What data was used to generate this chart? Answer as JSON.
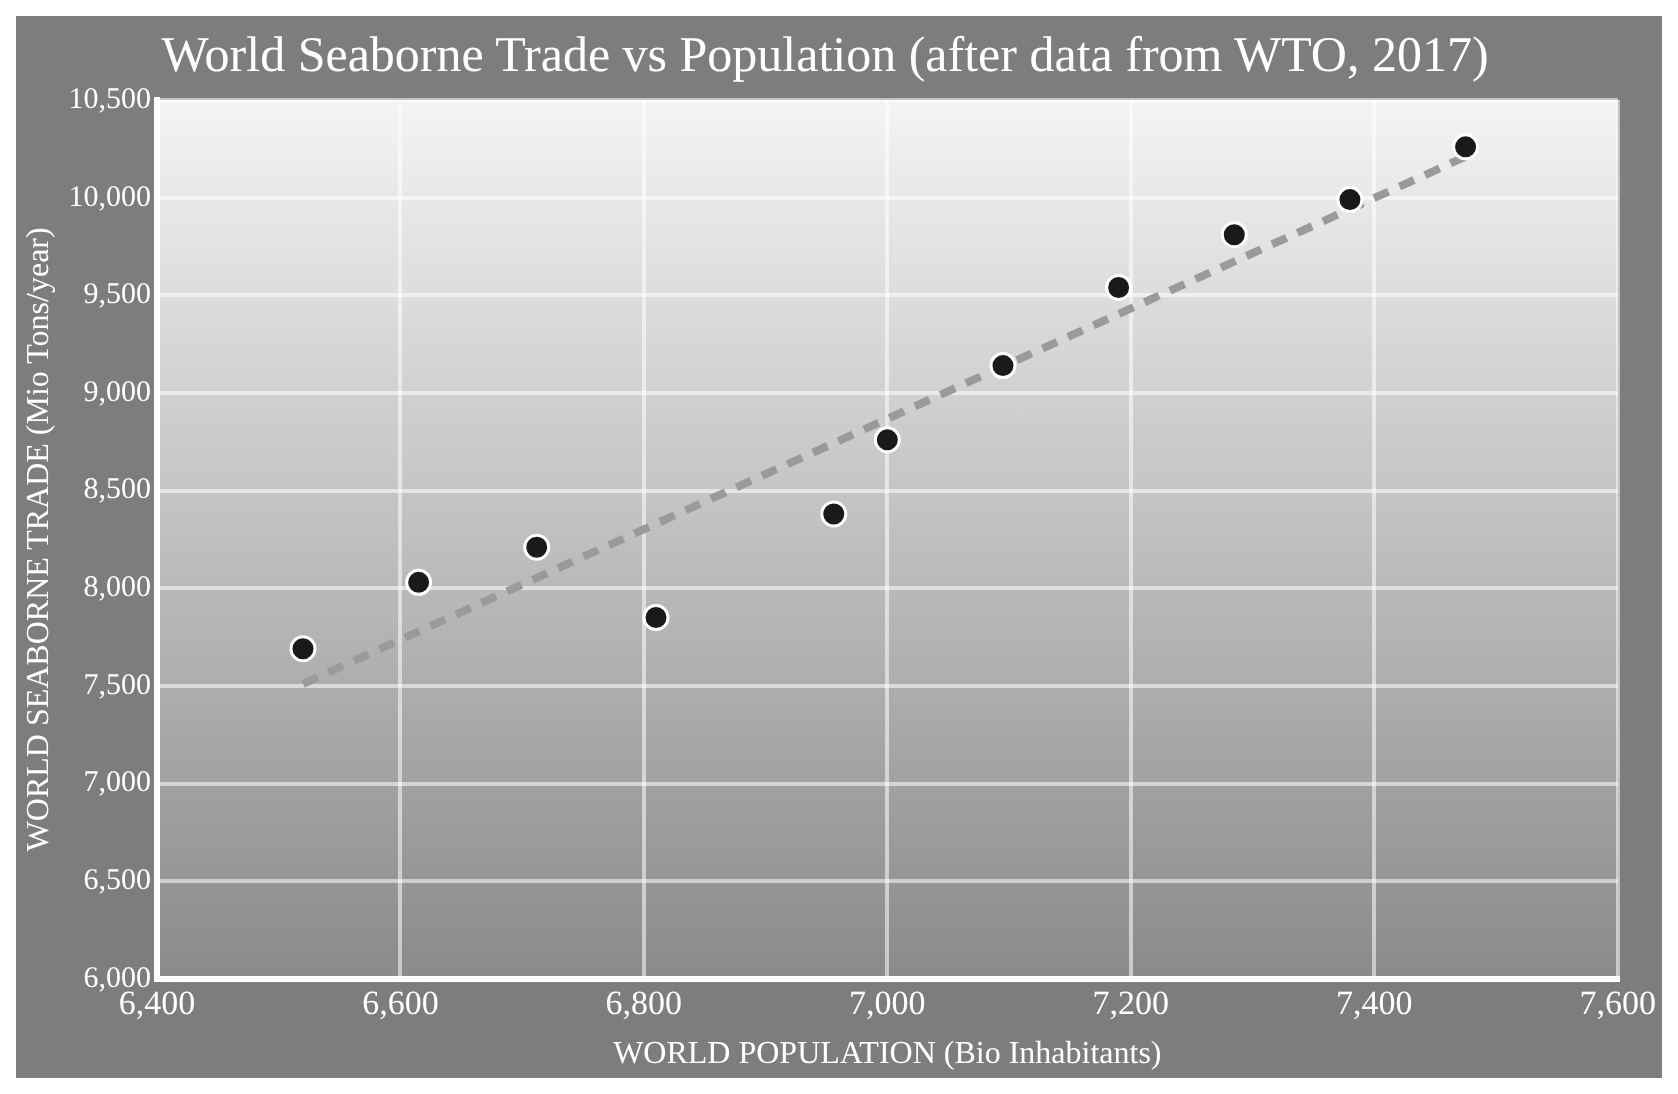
{
  "chart_data": {
    "type": "scatter",
    "title": "World Seaborne Trade vs Population (after data from WTO, 2017)",
    "xlabel": "WORLD POPULATION (Bio Inhabitants)",
    "ylabel": "WORLD SEABORNE TRADE (Mio Tons/year)",
    "x": [
      6520,
      6615,
      6712,
      6810,
      6956,
      7000,
      7095,
      7190,
      7285,
      7380,
      7475
    ],
    "series": [
      {
        "type": "scatter",
        "color": "#1a1a1a",
        "values": [
          7690,
          8030,
          8210,
          7850,
          8380,
          8760,
          9140,
          9540,
          9810,
          9990,
          10260
        ]
      },
      {
        "type": "line",
        "x": [
          6520,
          7475
        ],
        "values": [
          7510,
          10210
        ],
        "color": "#9a9a9a",
        "line_style": "dashed",
        "marker": "none"
      }
    ],
    "xlim": [
      6400,
      7600
    ],
    "xticks": [
      {
        "value": 6400,
        "label": "6,400"
      },
      {
        "value": 6600,
        "label": "6,600"
      },
      {
        "value": 6800,
        "label": "6,800"
      },
      {
        "value": 7000,
        "label": "7,000"
      },
      {
        "value": 7200,
        "label": "7,200"
      },
      {
        "value": 7400,
        "label": "7,400"
      },
      {
        "value": 7600,
        "label": "7,600"
      }
    ],
    "ylim": [
      6000,
      10500
    ],
    "yticks": [
      {
        "value": 6000,
        "label": "6,000"
      },
      {
        "value": 6500,
        "label": "6,500"
      },
      {
        "value": 7000,
        "label": "7,000"
      },
      {
        "value": 7500,
        "label": "7,500"
      },
      {
        "value": 8000,
        "label": "8,000"
      },
      {
        "value": 8500,
        "label": "8,500"
      },
      {
        "value": 9000,
        "label": "9,000"
      },
      {
        "value": 9500,
        "label": "9,500"
      },
      {
        "value": 10000,
        "label": "10,000"
      },
      {
        "value": 10500,
        "label": "10,500"
      }
    ],
    "grid": true,
    "legend": false,
    "marker": "circle"
  }
}
